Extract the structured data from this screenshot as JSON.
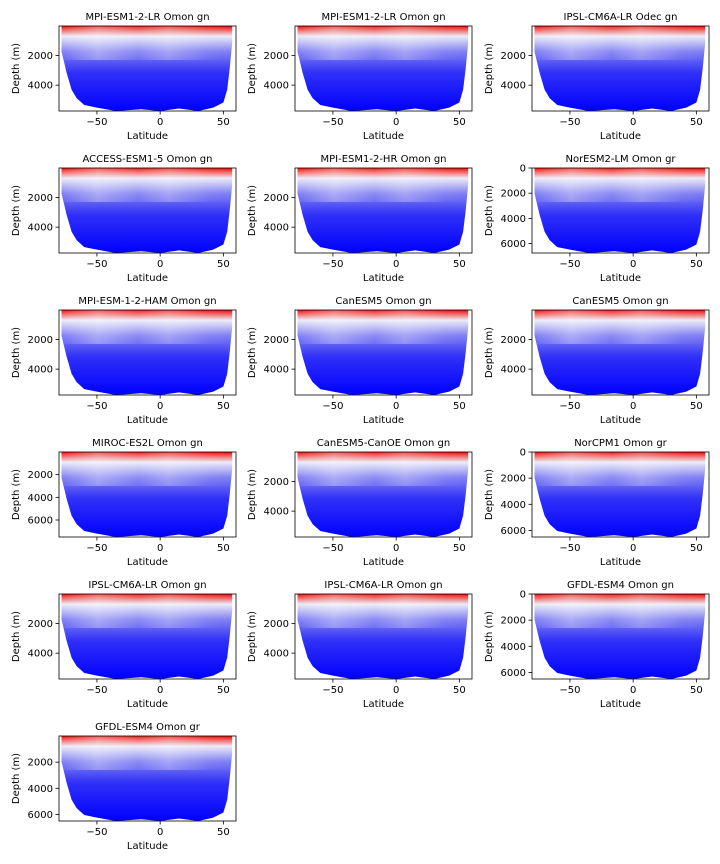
{
  "figure": {
    "xlabel": "Latitude",
    "ylabel": "Depth (m)",
    "colormap": [
      "#0000ff",
      "#ffffff",
      "#ff0000"
    ]
  },
  "chart_data": [
    {
      "type": "heatmap",
      "title": "MPI-ESM1-2-LR Omon gn",
      "xlabel": "Latitude",
      "ylabel": "Depth (m)",
      "xlim": [
        -80,
        60
      ],
      "ylim": [
        5750,
        0
      ],
      "xticks": [
        -50,
        0,
        50
      ],
      "yticks": [
        2000,
        4000
      ],
      "depth_max": 5750
    },
    {
      "type": "heatmap",
      "title": "MPI-ESM1-2-LR Omon gn",
      "xlabel": "Latitude",
      "ylabel": "Depth (m)",
      "xlim": [
        -80,
        60
      ],
      "ylim": [
        5750,
        0
      ],
      "xticks": [
        -50,
        0,
        50
      ],
      "yticks": [
        2000,
        4000
      ],
      "depth_max": 5750
    },
    {
      "type": "heatmap",
      "title": "IPSL-CM6A-LR Odec gn",
      "xlabel": "Latitude",
      "ylabel": "Depth (m)",
      "xlim": [
        -80,
        60
      ],
      "ylim": [
        5750,
        0
      ],
      "xticks": [
        -50,
        0,
        50
      ],
      "yticks": [
        2000,
        4000
      ],
      "depth_max": 5750
    },
    {
      "type": "heatmap",
      "title": "ACCESS-ESM1-5 Omon gn",
      "xlabel": "Latitude",
      "ylabel": "Depth (m)",
      "xlim": [
        -80,
        60
      ],
      "ylim": [
        5750,
        0
      ],
      "xticks": [
        -50,
        0,
        50
      ],
      "yticks": [
        2000,
        4000
      ],
      "depth_max": 5750
    },
    {
      "type": "heatmap",
      "title": "MPI-ESM1-2-HR Omon gn",
      "xlabel": "Latitude",
      "ylabel": "Depth (m)",
      "xlim": [
        -80,
        60
      ],
      "ylim": [
        5750,
        0
      ],
      "xticks": [
        -50,
        0,
        50
      ],
      "yticks": [
        2000,
        4000
      ],
      "depth_max": 5750
    },
    {
      "type": "heatmap",
      "title": "NorESM2-LM Omon gr",
      "xlabel": "Latitude",
      "ylabel": "Depth (m)",
      "xlim": [
        -80,
        60
      ],
      "ylim": [
        6750,
        0
      ],
      "xticks": [
        -50,
        0,
        50
      ],
      "yticks": [
        0,
        2000,
        4000,
        6000
      ],
      "depth_max": 6750
    },
    {
      "type": "heatmap",
      "title": "MPI-ESM-1-2-HAM Omon gn",
      "xlabel": "Latitude",
      "ylabel": "Depth (m)",
      "xlim": [
        -80,
        60
      ],
      "ylim": [
        5750,
        0
      ],
      "xticks": [
        -50,
        0,
        50
      ],
      "yticks": [
        2000,
        4000
      ],
      "depth_max": 5750
    },
    {
      "type": "heatmap",
      "title": "CanESM5 Omon gn",
      "xlabel": "Latitude",
      "ylabel": "Depth (m)",
      "xlim": [
        -80,
        60
      ],
      "ylim": [
        5750,
        0
      ],
      "xticks": [
        -50,
        0,
        50
      ],
      "yticks": [
        2000,
        4000
      ],
      "depth_max": 5750
    },
    {
      "type": "heatmap",
      "title": "CanESM5 Omon gn",
      "xlabel": "Latitude",
      "ylabel": "Depth (m)",
      "xlim": [
        -80,
        60
      ],
      "ylim": [
        5750,
        0
      ],
      "xticks": [
        -50,
        0,
        50
      ],
      "yticks": [
        2000,
        4000
      ],
      "depth_max": 5750
    },
    {
      "type": "heatmap",
      "title": "MIROC-ES2L Omon gn",
      "xlabel": "Latitude",
      "ylabel": "Depth (m)",
      "xlim": [
        -80,
        60
      ],
      "ylim": [
        7500,
        0
      ],
      "xticks": [
        -50,
        0,
        50
      ],
      "yticks": [
        2000,
        4000,
        6000
      ],
      "depth_max": 7500
    },
    {
      "type": "heatmap",
      "title": "CanESM5-CanOE Omon gn",
      "xlabel": "Latitude",
      "ylabel": "Depth (m)",
      "xlim": [
        -80,
        60
      ],
      "ylim": [
        5750,
        0
      ],
      "xticks": [
        -50,
        0,
        50
      ],
      "yticks": [
        2000,
        4000
      ],
      "depth_max": 5750
    },
    {
      "type": "heatmap",
      "title": "NorCPM1 Omon gr",
      "xlabel": "Latitude",
      "ylabel": "Depth (m)",
      "xlim": [
        -80,
        60
      ],
      "ylim": [
        6500,
        0
      ],
      "xticks": [
        -50,
        0,
        50
      ],
      "yticks": [
        0,
        2000,
        4000,
        6000
      ],
      "depth_max": 6500
    },
    {
      "type": "heatmap",
      "title": "IPSL-CM6A-LR Omon gn",
      "xlabel": "Latitude",
      "ylabel": "Depth (m)",
      "xlim": [
        -80,
        60
      ],
      "ylim": [
        5750,
        0
      ],
      "xticks": [
        -50,
        0,
        50
      ],
      "yticks": [
        2000,
        4000
      ],
      "depth_max": 5750
    },
    {
      "type": "heatmap",
      "title": "IPSL-CM6A-LR Omon gn",
      "xlabel": "Latitude",
      "ylabel": "Depth (m)",
      "xlim": [
        -80,
        60
      ],
      "ylim": [
        5750,
        0
      ],
      "xticks": [
        -50,
        0,
        50
      ],
      "yticks": [
        2000,
        4000
      ],
      "depth_max": 5750
    },
    {
      "type": "heatmap",
      "title": "GFDL-ESM4 Omon gn",
      "xlabel": "Latitude",
      "ylabel": "Depth (m)",
      "xlim": [
        -80,
        60
      ],
      "ylim": [
        6500,
        0
      ],
      "xticks": [
        -50,
        0,
        50
      ],
      "yticks": [
        0,
        2000,
        4000,
        6000
      ],
      "depth_max": 6500
    },
    {
      "type": "heatmap",
      "title": "GFDL-ESM4 Omon gr",
      "xlabel": "Latitude",
      "ylabel": "Depth (m)",
      "xlim": [
        -80,
        60
      ],
      "ylim": [
        6500,
        0
      ],
      "xticks": [
        -50,
        0,
        50
      ],
      "yticks": [
        2000,
        4000,
        6000
      ],
      "depth_max": 6500
    }
  ]
}
